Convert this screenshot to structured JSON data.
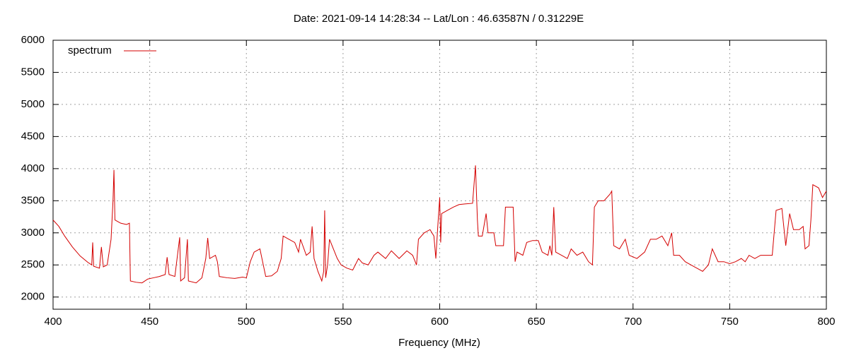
{
  "chart_data": {
    "type": "line",
    "title": "Date: 2021-09-14 14:28:34  --  Lat/Lon : 46.63587N / 0.31229E",
    "x_label": "Frequency (MHz)",
    "xlim": [
      400,
      800
    ],
    "xticks": [
      400,
      450,
      500,
      550,
      600,
      650,
      700,
      750,
      800
    ],
    "ylim": [
      1810,
      6000
    ],
    "yticks": [
      2000,
      2500,
      3000,
      3500,
      4000,
      4500,
      5000,
      5500,
      6000
    ],
    "grid": true,
    "legend": "top-left",
    "x": [
      400,
      403,
      406,
      410,
      414,
      418,
      420,
      420.5,
      421,
      424,
      425,
      426,
      428,
      430,
      431,
      431.5,
      432,
      435,
      438,
      439.5,
      440,
      443,
      446,
      449,
      452,
      455,
      458,
      459,
      460,
      463,
      465.5,
      466,
      468,
      469.5,
      470,
      474,
      477,
      479,
      480,
      481,
      484,
      485,
      486,
      490,
      494,
      498,
      500,
      502,
      504,
      507,
      510,
      513,
      516,
      518,
      519,
      522,
      525,
      527,
      528,
      531,
      533,
      534,
      535,
      537,
      539,
      540,
      540.5,
      541,
      542,
      543,
      545,
      547,
      549,
      552,
      555,
      558,
      560,
      563,
      566,
      568,
      572,
      575,
      579,
      583,
      586,
      588,
      589,
      592,
      595,
      597,
      598,
      599,
      600,
      600.5,
      601,
      604,
      607,
      610,
      613,
      617,
      618.5,
      619.5,
      620,
      622,
      624,
      625,
      628,
      629,
      633,
      634,
      638,
      639,
      640,
      643,
      645,
      648,
      651,
      653,
      656,
      657,
      658,
      659,
      660,
      663,
      666,
      668,
      671,
      674,
      677,
      679,
      680,
      682,
      685,
      688,
      689,
      690,
      693,
      696,
      698,
      702,
      706,
      709,
      712,
      715,
      718,
      720,
      721,
      724,
      727,
      730,
      733,
      736,
      739,
      741,
      744,
      747,
      750,
      753,
      756,
      758,
      760,
      763,
      766,
      769,
      772,
      774,
      777,
      779,
      781,
      783,
      786,
      788,
      789,
      791,
      792,
      793,
      796,
      798,
      800
    ],
    "series": [
      {
        "name": "spectrum",
        "color": "#d40000",
        "values": [
          3200,
          3100,
          2950,
          2780,
          2640,
          2540,
          2500,
          2850,
          2480,
          2450,
          2780,
          2470,
          2500,
          2900,
          3500,
          3980,
          3200,
          3150,
          3130,
          3150,
          2250,
          2230,
          2220,
          2280,
          2300,
          2320,
          2350,
          2620,
          2350,
          2320,
          2930,
          2250,
          2300,
          2900,
          2250,
          2220,
          2300,
          2600,
          2920,
          2600,
          2650,
          2550,
          2320,
          2300,
          2290,
          2310,
          2300,
          2550,
          2700,
          2750,
          2320,
          2330,
          2400,
          2600,
          2950,
          2900,
          2850,
          2700,
          2900,
          2650,
          2700,
          3100,
          2600,
          2400,
          2250,
          2400,
          3350,
          2300,
          2500,
          2900,
          2750,
          2600,
          2500,
          2450,
          2420,
          2600,
          2530,
          2500,
          2650,
          2700,
          2600,
          2720,
          2600,
          2720,
          2650,
          2500,
          2900,
          3000,
          3050,
          2950,
          2600,
          3100,
          3550,
          2850,
          3300,
          3350,
          3400,
          3440,
          3450,
          3460,
          4050,
          3200,
          2950,
          2950,
          3300,
          3000,
          3000,
          2800,
          2800,
          3400,
          3400,
          2550,
          2700,
          2650,
          2850,
          2880,
          2880,
          2700,
          2650,
          2800,
          2650,
          3400,
          2700,
          2650,
          2600,
          2750,
          2650,
          2700,
          2550,
          2500,
          3400,
          3500,
          3500,
          3600,
          3650,
          2800,
          2750,
          2900,
          2650,
          2600,
          2700,
          2900,
          2900,
          2950,
          2800,
          3000,
          2650,
          2650,
          2550,
          2500,
          2450,
          2400,
          2500,
          2750,
          2550,
          2550,
          2520,
          2550,
          2600,
          2550,
          2650,
          2600,
          2650,
          2650,
          2650,
          3350,
          3380,
          2800,
          3300,
          3050,
          3050,
          3100,
          2750,
          2800,
          3200,
          3750,
          3700,
          3550,
          3650
        ]
      }
    ]
  }
}
